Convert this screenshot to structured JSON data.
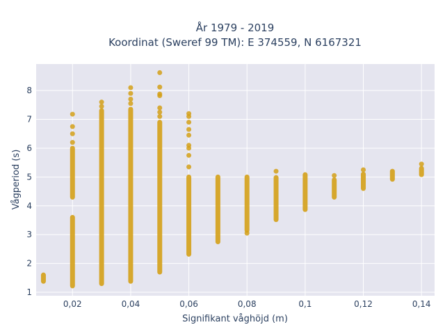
{
  "chart_data": {
    "type": "scatter",
    "title_line1": "År 1979 - 2019",
    "title_line2": "Koordinat (Sweref 99 TM): E 374559, N 6167321",
    "xlabel": "Signifikant våghöjd (m)",
    "ylabel": "Vågperiod (s)",
    "xlim": [
      0.0075,
      0.1445
    ],
    "ylim": [
      0.88,
      8.92
    ],
    "grid": true,
    "marker_color": "#d4a017",
    "background_color": "#e5e5ef",
    "x_ticks": [
      {
        "value": 0.02,
        "label": "0,02"
      },
      {
        "value": 0.04,
        "label": "0,04"
      },
      {
        "value": 0.06,
        "label": "0,06"
      },
      {
        "value": 0.08,
        "label": "0,08"
      },
      {
        "value": 0.1,
        "label": "0,1"
      },
      {
        "value": 0.12,
        "label": "0,12"
      },
      {
        "value": 0.14,
        "label": "0,14"
      }
    ],
    "y_ticks": [
      {
        "value": 1,
        "label": "1"
      },
      {
        "value": 2,
        "label": "2"
      },
      {
        "value": 3,
        "label": "3"
      },
      {
        "value": 4,
        "label": "4"
      },
      {
        "value": 5,
        "label": "5"
      },
      {
        "value": 6,
        "label": "6"
      },
      {
        "value": 7,
        "label": "7"
      },
      {
        "value": 8,
        "label": "8"
      }
    ],
    "columns": [
      {
        "x": 0.01,
        "ranges": [
          [
            1.38,
            1.6
          ]
        ],
        "outliers": []
      },
      {
        "x": 0.02,
        "ranges": [
          [
            1.22,
            3.6
          ],
          [
            4.3,
            6.0
          ]
        ],
        "outliers": [
          6.2,
          6.5,
          6.75,
          7.18
        ]
      },
      {
        "x": 0.03,
        "ranges": [
          [
            1.3,
            7.3
          ]
        ],
        "outliers": [
          7.45,
          7.6
        ]
      },
      {
        "x": 0.04,
        "ranges": [
          [
            1.38,
            7.35
          ]
        ],
        "outliers": [
          7.55,
          7.7,
          7.9,
          8.1
        ]
      },
      {
        "x": 0.05,
        "ranges": [
          [
            1.7,
            6.9
          ]
        ],
        "outliers": [
          7.1,
          7.25,
          7.4,
          7.82,
          7.88,
          8.12,
          8.62
        ]
      },
      {
        "x": 0.06,
        "ranges": [
          [
            2.32,
            5.0
          ]
        ],
        "outliers": [
          5.35,
          5.75,
          6.0,
          6.1,
          6.45,
          6.65,
          6.9,
          7.1,
          7.2
        ]
      },
      {
        "x": 0.07,
        "ranges": [
          [
            2.75,
            5.0
          ]
        ],
        "outliers": []
      },
      {
        "x": 0.08,
        "ranges": [
          [
            3.15,
            5.0
          ]
        ],
        "outliers": [
          3.05
        ]
      },
      {
        "x": 0.09,
        "ranges": [
          [
            3.52,
            4.98
          ]
        ],
        "outliers": [
          5.2
        ]
      },
      {
        "x": 0.1,
        "ranges": [
          [
            3.87,
            5.08
          ]
        ],
        "outliers": []
      },
      {
        "x": 0.11,
        "ranges": [
          [
            4.3,
            4.9
          ]
        ],
        "outliers": [
          5.05
        ]
      },
      {
        "x": 0.12,
        "ranges": [
          [
            4.6,
            5.1
          ]
        ],
        "outliers": [
          5.25
        ]
      },
      {
        "x": 0.13,
        "ranges": [
          [
            4.92,
            5.2
          ]
        ],
        "outliers": []
      },
      {
        "x": 0.14,
        "ranges": [
          [
            5.08,
            5.3
          ]
        ],
        "outliers": [
          5.45
        ]
      }
    ]
  }
}
